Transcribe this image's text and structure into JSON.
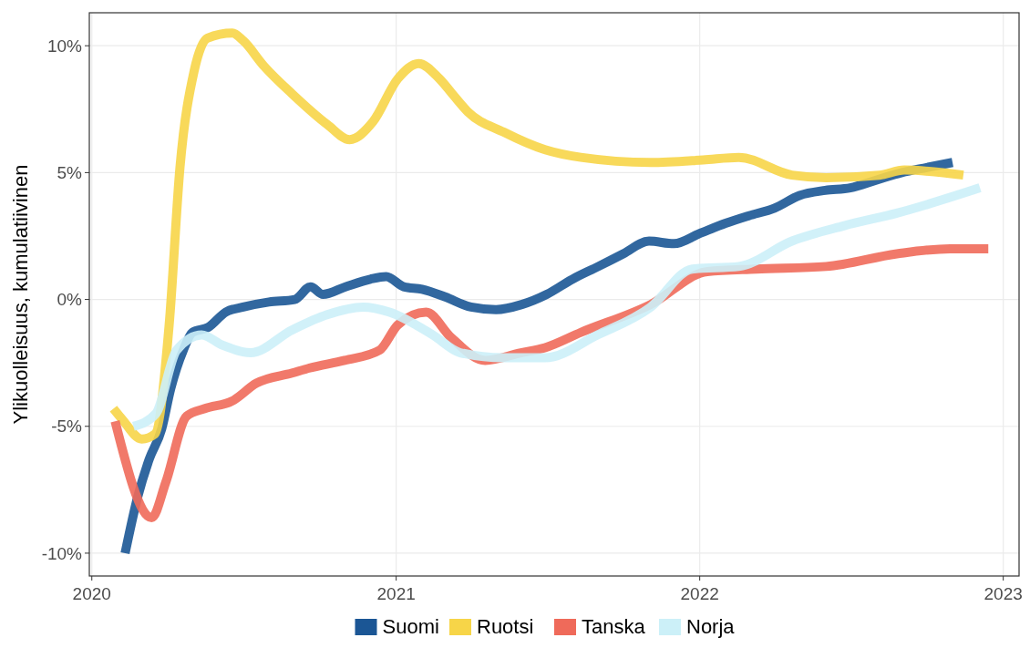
{
  "chart_data": {
    "type": "line",
    "ylabel": "Ylikuolleisuus, kumulatiivinen",
    "legend": "bottom",
    "grid": true,
    "line_style": "solid",
    "marker": "none",
    "xlim": [
      "2019-12-29",
      "2023-01-20"
    ],
    "xticks": [
      "2020",
      "2021",
      "2022",
      "2023"
    ],
    "ylim": [
      -10.9,
      11.3
    ],
    "yticks": [
      {
        "value": -10,
        "label": "-10%"
      },
      {
        "value": -5,
        "label": "-5%"
      },
      {
        "value": 0,
        "label": "0%"
      },
      {
        "value": 5,
        "label": "5%"
      },
      {
        "value": 10,
        "label": "10%"
      }
    ],
    "series": [
      {
        "name": "Suomi",
        "color": "#1b5695",
        "x": [
          "2020-02-10",
          "2020-02-25",
          "2020-03-10",
          "2020-03-25",
          "2020-04-05",
          "2020-04-20",
          "2020-05-01",
          "2020-05-20",
          "2020-06-10",
          "2020-07-01",
          "2020-08-01",
          "2020-09-01",
          "2020-09-20",
          "2020-10-05",
          "2020-11-01",
          "2020-12-01",
          "2020-12-20",
          "2021-01-10",
          "2021-02-01",
          "2021-03-01",
          "2021-04-01",
          "2021-05-01",
          "2021-06-01",
          "2021-07-01",
          "2021-08-01",
          "2021-09-01",
          "2021-10-01",
          "2021-11-01",
          "2021-12-01",
          "2022-01-01",
          "2022-02-01",
          "2022-03-01",
          "2022-04-01",
          "2022-05-01",
          "2022-06-01",
          "2022-07-01",
          "2022-08-01",
          "2022-09-01",
          "2022-10-01",
          "2022-11-01"
        ],
        "values": [
          -10.0,
          -7.8,
          -6.3,
          -5.1,
          -3.5,
          -2.0,
          -1.3,
          -1.1,
          -0.5,
          -0.3,
          -0.1,
          0.0,
          0.5,
          0.2,
          0.5,
          0.8,
          0.9,
          0.5,
          0.4,
          0.1,
          -0.3,
          -0.4,
          -0.2,
          0.2,
          0.8,
          1.3,
          1.8,
          2.3,
          2.2,
          2.6,
          3.0,
          3.3,
          3.6,
          4.1,
          4.3,
          4.4,
          4.7,
          5.0,
          5.2,
          5.4
        ]
      },
      {
        "name": "Ruotsi",
        "color": "#f7d548",
        "x": [
          "2020-01-27",
          "2020-02-06",
          "2020-03-01",
          "2020-03-17",
          "2020-04-03",
          "2020-04-16",
          "2020-05-03",
          "2020-05-19",
          "2020-06-18",
          "2020-07-01",
          "2020-07-26",
          "2020-08-29",
          "2020-10-10",
          "2020-11-06",
          "2020-12-04",
          "2021-01-03",
          "2021-01-28",
          "2021-02-22",
          "2021-03-12",
          "2021-03-28",
          "2021-05-10",
          "2021-06-29",
          "2021-08-11",
          "2021-11-03",
          "2022-01-05",
          "2022-02-17",
          "2022-04-22",
          "2022-06-02",
          "2022-08-05",
          "2022-09-04",
          "2022-11-14"
        ],
        "values": [
          -4.3,
          -4.7,
          -5.5,
          -5.3,
          -1.0,
          5.2,
          9.0,
          10.3,
          10.5,
          10.2,
          9.2,
          8.1,
          6.9,
          6.3,
          7.0,
          8.7,
          9.3,
          8.7,
          8.0,
          7.4,
          6.6,
          5.9,
          5.6,
          5.4,
          5.5,
          5.6,
          4.9,
          4.8,
          4.9,
          5.1,
          4.9
        ]
      },
      {
        "name": "Tanska",
        "color": "#ef6a5a",
        "x": [
          "2020-01-29",
          "2020-03-13",
          "2020-03-30",
          "2020-04-24",
          "2020-05-16",
          "2020-06-18",
          "2020-07-17",
          "2020-08-29",
          "2020-09-19",
          "2020-10-31",
          "2020-12-12",
          "2021-01-03",
          "2021-02-06",
          "2021-03-08",
          "2021-04-18",
          "2021-05-31",
          "2021-06-29",
          "2021-08-11",
          "2021-11-03",
          "2022-01-10",
          "2022-03-10",
          "2022-06-02",
          "2022-08-26",
          "2022-10-29",
          "2022-12-14"
        ],
        "values": [
          -4.8,
          -8.6,
          -7.2,
          -4.6,
          -4.3,
          -4.0,
          -3.3,
          -2.9,
          -2.7,
          -2.4,
          -2.0,
          -1.0,
          -0.5,
          -1.5,
          -2.4,
          -2.1,
          -1.9,
          -1.3,
          -0.2,
          1.1,
          1.2,
          1.3,
          1.8,
          2.0,
          2.0
        ]
      },
      {
        "name": "Norja",
        "color": "#ccf0f8",
        "x": [
          "2020-02-20",
          "2020-03-18",
          "2020-04-12",
          "2020-05-12",
          "2020-06-06",
          "2020-07-10",
          "2020-08-29",
          "2020-10-10",
          "2020-11-22",
          "2020-12-24",
          "2021-02-14",
          "2021-03-19",
          "2021-05-10",
          "2021-06-29",
          "2021-08-31",
          "2021-11-03",
          "2021-12-23",
          "2022-02-17",
          "2022-04-22",
          "2022-06-23",
          "2022-08-26",
          "2022-12-04"
        ],
        "values": [
          -5.0,
          -4.5,
          -2.0,
          -1.4,
          -1.8,
          -2.1,
          -1.2,
          -0.6,
          -0.3,
          -0.5,
          -1.4,
          -2.1,
          -2.3,
          -2.3,
          -1.4,
          -0.3,
          1.2,
          1.3,
          2.3,
          2.9,
          3.4,
          4.4
        ]
      }
    ]
  }
}
